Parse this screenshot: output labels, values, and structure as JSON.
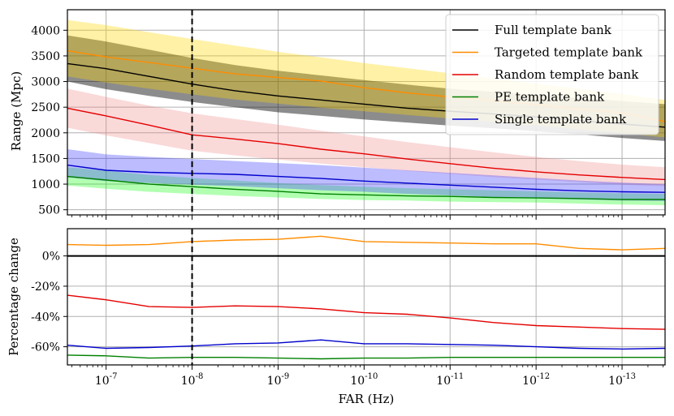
{
  "chart_data": [
    {
      "type": "line",
      "panel": "top",
      "title": "",
      "xlabel": "",
      "ylabel": "Range (Mpc)",
      "xscale": "log",
      "xaxis_reversed": true,
      "xlim_log10": [
        -6.55,
        -13.5
      ],
      "ylim": [
        400,
        4400
      ],
      "yticks": [
        500,
        1000,
        1500,
        2000,
        2500,
        3000,
        3500,
        4000
      ],
      "ytick_labels": [
        "500",
        "1000",
        "1500",
        "2000",
        "2500",
        "3000",
        "3500",
        "4000"
      ],
      "grid": true,
      "reference_line": {
        "x_log10": -8,
        "style": "dashed",
        "color": "#000000"
      },
      "legend_position": "top-right",
      "x_log10": [
        -6.55,
        -7.0,
        -7.5,
        -8.0,
        -8.5,
        -9.0,
        -9.5,
        -10.0,
        -10.5,
        -11.0,
        -11.5,
        -12.0,
        -12.5,
        -13.0,
        -13.5
      ],
      "series": [
        {
          "name": "Full template bank",
          "color": "#000000",
          "band_color": "#000000",
          "band_opacity": 0.45,
          "values": [
            3350,
            3250,
            3100,
            2950,
            2820,
            2720,
            2640,
            2560,
            2480,
            2420,
            2370,
            2310,
            2240,
            2170,
            2110
          ],
          "lower": [
            3000,
            2850,
            2720,
            2600,
            2500,
            2400,
            2330,
            2260,
            2200,
            2140,
            2090,
            2030,
            1970,
            1900,
            1840
          ],
          "upper": [
            3900,
            3780,
            3620,
            3460,
            3320,
            3210,
            3120,
            3030,
            2940,
            2860,
            2800,
            2740,
            2680,
            2620,
            2560
          ]
        },
        {
          "name": "Targeted template bank",
          "color": "#ff8c00",
          "band_color": "#ffd700",
          "band_opacity": 0.35,
          "values": [
            3600,
            3480,
            3370,
            3260,
            3150,
            3080,
            3010,
            2880,
            2780,
            2700,
            2630,
            2550,
            2460,
            2390,
            2220
          ],
          "lower": [
            3100,
            2980,
            2860,
            2750,
            2650,
            2570,
            2490,
            2420,
            2350,
            2280,
            2210,
            2140,
            2070,
            1990,
            1910
          ],
          "upper": [
            4200,
            4100,
            3960,
            3830,
            3700,
            3580,
            3470,
            3360,
            3260,
            3160,
            3060,
            2960,
            2860,
            2760,
            2640
          ]
        },
        {
          "name": "Random template bank",
          "color": "#e50000",
          "band_color": "#f08080",
          "band_opacity": 0.3,
          "values": [
            2480,
            2330,
            2150,
            1960,
            1880,
            1790,
            1680,
            1590,
            1490,
            1400,
            1310,
            1240,
            1180,
            1130,
            1090
          ],
          "lower": [
            2100,
            1950,
            1800,
            1650,
            1560,
            1480,
            1400,
            1330,
            1260,
            1200,
            1140,
            1090,
            1040,
            990,
            960
          ],
          "upper": [
            2860,
            2700,
            2530,
            2380,
            2270,
            2160,
            2040,
            1930,
            1820,
            1720,
            1620,
            1530,
            1450,
            1380,
            1330
          ]
        },
        {
          "name": "PE template bank",
          "color": "#008000",
          "band_color": "#00ff00",
          "band_opacity": 0.3,
          "values": [
            1150,
            1080,
            1000,
            950,
            900,
            860,
            810,
            790,
            770,
            760,
            740,
            730,
            720,
            700,
            700
          ],
          "lower": [
            970,
            910,
            850,
            810,
            770,
            740,
            710,
            690,
            680,
            660,
            650,
            640,
            620,
            600,
            590
          ],
          "upper": [
            1330,
            1260,
            1180,
            1120,
            1070,
            1020,
            980,
            950,
            920,
            900,
            880,
            860,
            840,
            820,
            810
          ]
        },
        {
          "name": "Single template bank",
          "color": "#0000cd",
          "band_color": "#4040ff",
          "band_opacity": 0.35,
          "values": [
            1370,
            1270,
            1230,
            1210,
            1190,
            1150,
            1110,
            1060,
            1020,
            980,
            940,
            900,
            870,
            850,
            840
          ],
          "lower": [
            1130,
            1060,
            1020,
            990,
            960,
            920,
            880,
            850,
            810,
            780,
            750,
            720,
            700,
            680,
            670
          ],
          "upper": [
            1680,
            1580,
            1530,
            1490,
            1450,
            1410,
            1370,
            1320,
            1270,
            1220,
            1170,
            1120,
            1070,
            1030,
            1000
          ]
        }
      ]
    },
    {
      "type": "line",
      "panel": "bottom",
      "xlabel": "FAR (Hz)",
      "ylabel": "Percentage change",
      "xscale": "log",
      "xaxis_reversed": true,
      "xlim_log10": [
        -6.55,
        -13.5
      ],
      "ylim": [
        -72,
        18
      ],
      "yticks": [
        0,
        -20,
        -40,
        -60
      ],
      "ytick_labels": [
        "0%",
        "-20%",
        "-40%",
        "-60%"
      ],
      "xticks_log10": [
        -7,
        -8,
        -9,
        -10,
        -11,
        -12,
        -13
      ],
      "xtick_labels": [
        "10^-7",
        "10^-8",
        "10^-9",
        "10^-10",
        "10^-11",
        "10^-12",
        "10^-13"
      ],
      "grid": true,
      "reference_line": {
        "x_log10": -8,
        "style": "dashed",
        "color": "#000000"
      },
      "zero_line": true,
      "x_log10": [
        -6.55,
        -7.0,
        -7.5,
        -8.0,
        -8.5,
        -9.0,
        -9.5,
        -10.0,
        -10.5,
        -11.0,
        -11.5,
        -12.0,
        -12.5,
        -13.0,
        -13.5
      ],
      "series": [
        {
          "name": "Targeted template bank",
          "color": "#ff8c00",
          "values": [
            7.5,
            7,
            7.5,
            9.5,
            10.5,
            11,
            13,
            9.5,
            9,
            8.5,
            8,
            8,
            5,
            4,
            5
          ]
        },
        {
          "name": "Random template bank",
          "color": "#e50000",
          "values": [
            -26,
            -29,
            -33.5,
            -34,
            -33,
            -33.5,
            -35,
            -37.5,
            -38.5,
            -41,
            -44,
            -46,
            -47,
            -48,
            -48.5
          ]
        },
        {
          "name": "Single template bank",
          "color": "#0000cd",
          "values": [
            -59,
            -61,
            -60.5,
            -59.5,
            -58,
            -57.5,
            -55.5,
            -58,
            -58,
            -58.5,
            -59,
            -60,
            -61,
            -61.5,
            -61
          ]
        },
        {
          "name": "PE template bank",
          "color": "#008000",
          "values": [
            -65.5,
            -66,
            -67.5,
            -67,
            -67,
            -67.5,
            -68,
            -67.5,
            -67.5,
            -67,
            -67,
            -67,
            -67,
            -67,
            -67
          ]
        }
      ]
    }
  ]
}
